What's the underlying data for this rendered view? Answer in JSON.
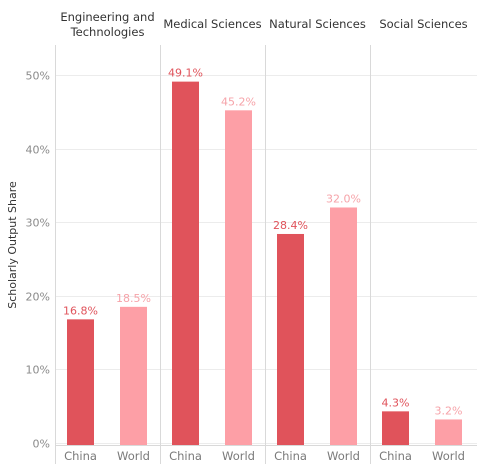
{
  "chart_data": {
    "type": "bar",
    "ylabel": "Scholarly Output Share",
    "ylim": [
      0,
      52
    ],
    "y_ticks": [
      "0%",
      "10%",
      "20%",
      "30%",
      "40%",
      "50%"
    ],
    "y_tick_values": [
      0,
      10,
      20,
      30,
      40,
      50
    ],
    "categories": [
      "China",
      "World"
    ],
    "panels": [
      {
        "title_lines": [
          "Engineering and",
          "Technologies"
        ],
        "values": [
          16.8,
          18.5
        ],
        "labels": [
          "16.8%",
          "18.5%"
        ]
      },
      {
        "title_lines": [
          "Medical Sciences"
        ],
        "values": [
          49.1,
          45.2
        ],
        "labels": [
          "49.1%",
          "45.2%"
        ]
      },
      {
        "title_lines": [
          "Natural Sciences"
        ],
        "values": [
          28.4,
          32.0
        ],
        "labels": [
          "28.4%",
          "32.0%"
        ]
      },
      {
        "title_lines": [
          "Social Sciences"
        ],
        "values": [
          4.3,
          3.2
        ],
        "labels": [
          "4.3%",
          "3.2%"
        ]
      }
    ],
    "colors": {
      "China": "#e0535b",
      "World": "#fd9fa6"
    },
    "label_colors": {
      "China": "#e0535b",
      "World": "#f6a3a9"
    },
    "grid": true,
    "legend": "none"
  }
}
